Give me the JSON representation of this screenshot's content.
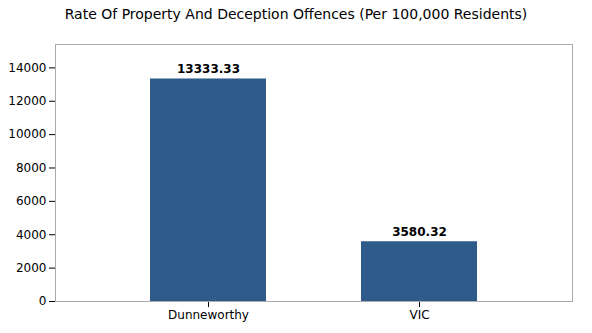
{
  "chart_data": {
    "type": "bar",
    "title": "Rate Of Property And Deception Offences (Per 100,000 Residents)",
    "categories": [
      "Dunneworthy",
      "VIC"
    ],
    "values": [
      13333.33,
      3580.32
    ],
    "color": "#2e5b8a",
    "ylim": [
      0,
      15400
    ],
    "yticks": [
      0,
      2000,
      4000,
      6000,
      8000,
      10000,
      12000,
      14000
    ],
    "grid": false,
    "data_labels": true
  }
}
